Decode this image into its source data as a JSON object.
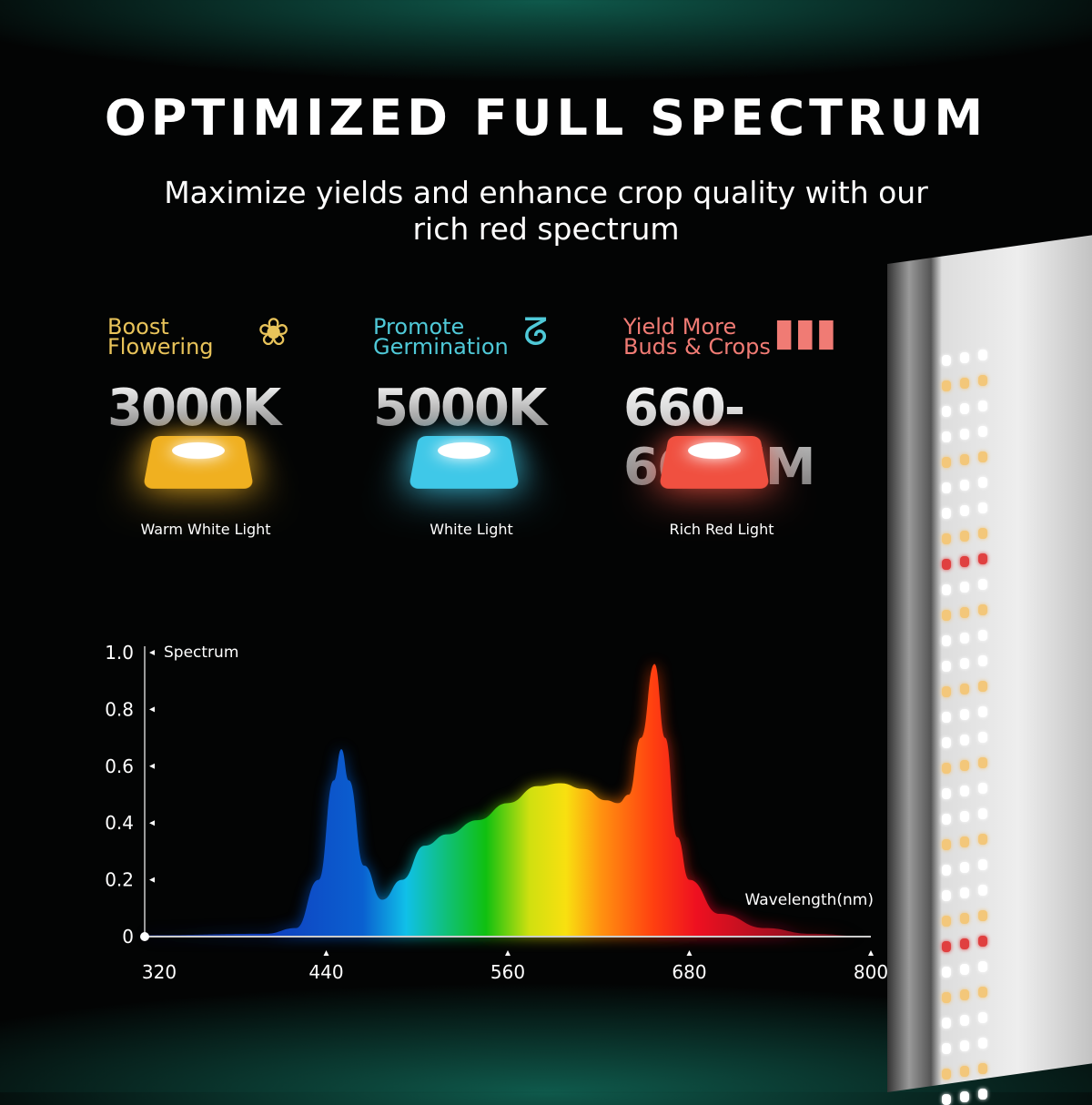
{
  "title": "OPTIMIZED FULL SPECTRUM",
  "subtitle": "Maximize yields and enhance crop quality with our rich red spectrum",
  "features": [
    {
      "heading1": "Boost",
      "heading2": "Flowering",
      "value": "3000K",
      "caption": "Warm White Light",
      "color": "#e8c35a",
      "chip": "#f0b020",
      "icon": "tulip-icon"
    },
    {
      "heading1": "Promote",
      "heading2": "Germination",
      "value": "5000K",
      "caption": "White Light",
      "color": "#4fc9d8",
      "chip": "#3fc8e8",
      "icon": "sprout-icon"
    },
    {
      "heading1": "Yield More",
      "heading2": "Buds & Crops",
      "value": "660-665NM",
      "caption": "Rich Red Light",
      "color": "#f07b74",
      "chip": "#f05040",
      "icon": "bar-growth-icon"
    }
  ],
  "chart_data": {
    "type": "area",
    "title": "",
    "ylabel": "Spectrum",
    "xlabel": "Wavelength(nm)",
    "xlim": [
      320,
      800
    ],
    "ylim": [
      0,
      1.0
    ],
    "xticks": [
      "320",
      "440",
      "560",
      "680",
      "800"
    ],
    "yticks": [
      "0",
      "0.2",
      "0.4",
      "0.6",
      "0.8",
      "1.0"
    ],
    "grid": false,
    "x": [
      320,
      400,
      420,
      435,
      445,
      450,
      455,
      465,
      477,
      490,
      505,
      520,
      540,
      560,
      580,
      595,
      610,
      625,
      633,
      640,
      648,
      657,
      664,
      672,
      680,
      700,
      730,
      760,
      800
    ],
    "y": [
      0.005,
      0.01,
      0.03,
      0.2,
      0.55,
      0.66,
      0.55,
      0.25,
      0.13,
      0.2,
      0.32,
      0.36,
      0.41,
      0.47,
      0.53,
      0.54,
      0.52,
      0.48,
      0.47,
      0.5,
      0.7,
      0.96,
      0.7,
      0.35,
      0.2,
      0.08,
      0.03,
      0.01,
      0
    ]
  }
}
